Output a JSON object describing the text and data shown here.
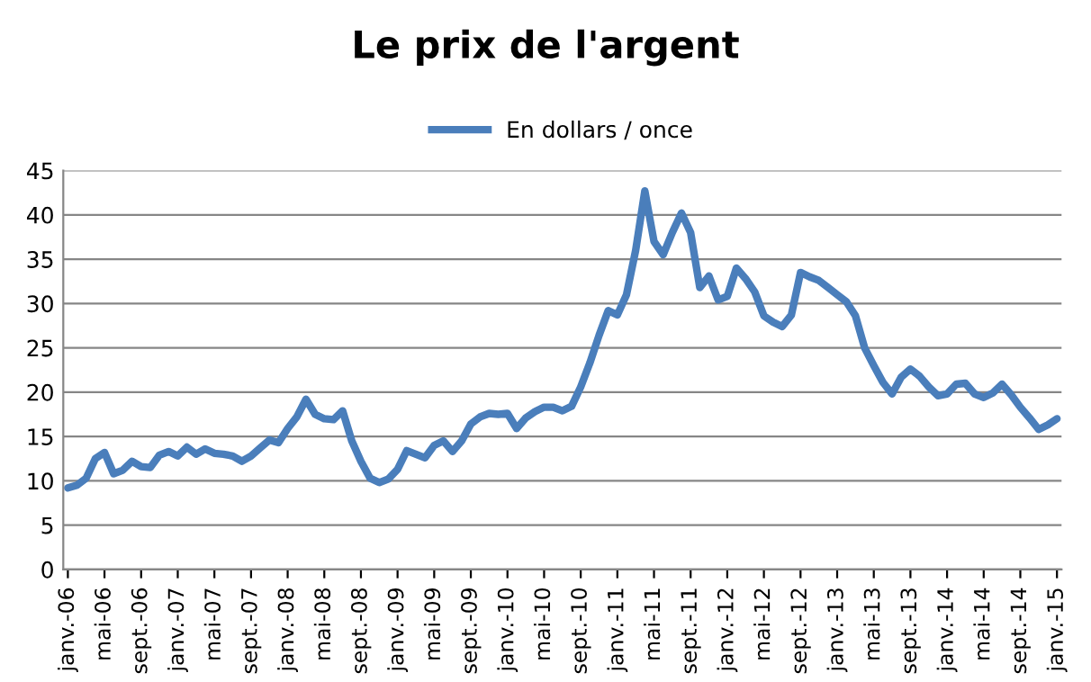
{
  "chart_data": {
    "type": "line",
    "title": "Le prix de l'argent",
    "categories": [
      "janv.-06",
      null,
      null,
      null,
      "mai-06",
      null,
      null,
      null,
      "sept.-06",
      null,
      null,
      null,
      "janv.-07",
      null,
      null,
      null,
      "mai-07",
      null,
      null,
      null,
      "sept.-07",
      null,
      null,
      null,
      "janv.-08",
      null,
      null,
      null,
      "mai-08",
      null,
      null,
      null,
      "sept.-08",
      null,
      null,
      null,
      "janv.-09",
      null,
      null,
      null,
      "mai-09",
      null,
      null,
      null,
      "sept.-09",
      null,
      null,
      null,
      "janv.-10",
      null,
      null,
      null,
      "mai-10",
      null,
      null,
      null,
      "sept.-10",
      null,
      null,
      null,
      "janv.-11",
      null,
      null,
      null,
      "mai-11",
      null,
      null,
      null,
      "sept.-11",
      null,
      null,
      null,
      "janv.-12",
      null,
      null,
      null,
      "mai-12",
      null,
      null,
      null,
      "sept.-12",
      null,
      null,
      null,
      "janv.-13",
      null,
      null,
      null,
      "mai-13",
      null,
      null,
      null,
      "sept.-13",
      null,
      null,
      null,
      "janv.-14",
      null,
      null,
      null,
      "mai-14",
      null,
      null,
      null,
      "sept.-14",
      null,
      null,
      null,
      "janv.-15"
    ],
    "series": [
      {
        "name": "En dollars / once",
        "color": "#4a7ebb",
        "values": [
          9.2,
          9.5,
          10.3,
          12.5,
          13.2,
          10.8,
          11.2,
          12.2,
          11.6,
          11.5,
          12.9,
          13.3,
          12.8,
          13.8,
          13.0,
          13.6,
          13.1,
          13.0,
          12.8,
          12.2,
          12.8,
          13.7,
          14.6,
          14.3,
          15.9,
          17.2,
          19.2,
          17.5,
          17.0,
          16.9,
          17.9,
          14.5,
          12.2,
          10.3,
          9.8,
          10.2,
          11.3,
          13.4,
          13.0,
          12.6,
          14.0,
          14.5,
          13.3,
          14.5,
          16.4,
          17.2,
          17.6,
          17.5,
          17.6,
          15.9,
          17.1,
          17.8,
          18.3,
          18.3,
          17.9,
          18.4,
          20.6,
          23.3,
          26.4,
          29.2,
          28.7,
          31.0,
          36.0,
          42.7,
          37.0,
          35.5,
          38.0,
          40.2,
          38.0,
          31.8,
          33.1,
          30.4,
          30.8,
          34.0,
          32.8,
          31.3,
          28.6,
          27.9,
          27.4,
          28.7,
          33.5,
          33.0,
          32.6,
          31.8,
          31.0,
          30.2,
          28.6,
          25.0,
          23.0,
          21.1,
          19.8,
          21.7,
          22.6,
          21.8,
          20.6,
          19.6,
          19.8,
          20.9,
          21.0,
          19.8,
          19.4,
          19.9,
          20.9,
          19.7,
          18.3,
          17.1,
          15.8,
          16.3,
          17.0
        ]
      }
    ],
    "ylim": [
      0,
      45
    ],
    "yticks": [
      0,
      5,
      10,
      15,
      20,
      25,
      30,
      35,
      40,
      45
    ],
    "grid": "y",
    "legend": "top",
    "marker": "none",
    "line_style": "solid"
  }
}
